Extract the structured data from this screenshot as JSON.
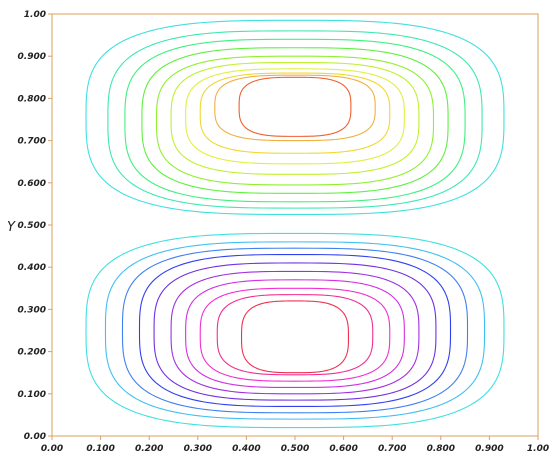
{
  "chart_data": {
    "type": "contour",
    "title": "",
    "xlabel": "",
    "ylabel": "Y",
    "xlim": [
      0.0,
      1.0
    ],
    "ylim": [
      0.0,
      1.0
    ],
    "xticks": [
      "0.00",
      "0.100",
      "0.200",
      "0.300",
      "0.400",
      "0.500",
      "0.600",
      "0.700",
      "0.800",
      "0.900",
      "1.00"
    ],
    "yticks": [
      "0.00",
      "0.100",
      "0.200",
      "0.300",
      "0.400",
      "0.500",
      "0.600",
      "0.700",
      "0.800",
      "0.900",
      "1.00"
    ],
    "grid": false,
    "legend": "none",
    "colors": {
      "frame": "#d8a060",
      "tick": "#d8a060"
    },
    "lobes": [
      {
        "name": "upper",
        "center": [
          0.5,
          0.8
        ],
        "contours": [
          {
            "x_halfwidth": 0.43,
            "y_range": [
              0.525,
              0.985
            ],
            "color": "#40e0e0"
          },
          {
            "x_halfwidth": 0.385,
            "y_range": [
              0.54,
              0.96
            ],
            "color": "#3ee8b0"
          },
          {
            "x_halfwidth": 0.35,
            "y_range": [
              0.555,
              0.94
            ],
            "color": "#40f080"
          },
          {
            "x_halfwidth": 0.315,
            "y_range": [
              0.575,
              0.92
            ],
            "color": "#60f040"
          },
          {
            "x_halfwidth": 0.285,
            "y_range": [
              0.595,
              0.9
            ],
            "color": "#90f030"
          },
          {
            "x_halfwidth": 0.255,
            "y_range": [
              0.62,
              0.885
            ],
            "color": "#c0f030"
          },
          {
            "x_halfwidth": 0.225,
            "y_range": [
              0.645,
              0.87
            ],
            "color": "#e0f040"
          },
          {
            "x_halfwidth": 0.195,
            "y_range": [
              0.67,
              0.86
            ],
            "color": "#f0d830"
          },
          {
            "x_halfwidth": 0.165,
            "y_range": [
              0.7,
              0.855
            ],
            "color": "#f0b040"
          },
          {
            "x_halfwidth": 0.115,
            "y_range": [
              0.71,
              0.85
            ],
            "color": "#f06030"
          }
        ]
      },
      {
        "name": "lower",
        "center": [
          0.5,
          0.22
        ],
        "contours": [
          {
            "x_halfwidth": 0.43,
            "y_range": [
              0.02,
              0.48
            ],
            "color": "#40e0e0"
          },
          {
            "x_halfwidth": 0.39,
            "y_range": [
              0.04,
              0.46
            ],
            "color": "#40c0f0"
          },
          {
            "x_halfwidth": 0.355,
            "y_range": [
              0.055,
              0.445
            ],
            "color": "#4080f0"
          },
          {
            "x_halfwidth": 0.32,
            "y_range": [
              0.07,
              0.43
            ],
            "color": "#3040f0"
          },
          {
            "x_halfwidth": 0.29,
            "y_range": [
              0.085,
              0.41
            ],
            "color": "#7030e0"
          },
          {
            "x_halfwidth": 0.255,
            "y_range": [
              0.1,
              0.39
            ],
            "color": "#a030e0"
          },
          {
            "x_halfwidth": 0.225,
            "y_range": [
              0.115,
              0.37
            ],
            "color": "#d030e0"
          },
          {
            "x_halfwidth": 0.195,
            "y_range": [
              0.13,
              0.35
            ],
            "color": "#f030d0"
          },
          {
            "x_halfwidth": 0.16,
            "y_range": [
              0.145,
              0.335
            ],
            "color": "#f03090"
          },
          {
            "x_halfwidth": 0.11,
            "y_range": [
              0.15,
              0.32
            ],
            "color": "#f03050"
          }
        ]
      }
    ]
  }
}
